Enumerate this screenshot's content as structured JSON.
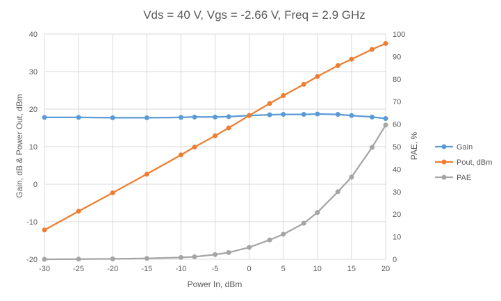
{
  "chart_data": {
    "type": "line",
    "title": "Vds = 40 V, Vgs = -2.66 V, Freq = 2.9 GHz",
    "xlabel": "Power In, dBm",
    "ylabel": "Gain, dB & Power Out, dBm",
    "y2label": "PAE, %",
    "xlim": [
      -30,
      20
    ],
    "ylim": [
      -20,
      40
    ],
    "y2lim": [
      0,
      100
    ],
    "xticks": [
      -30,
      -25,
      -20,
      -15,
      -10,
      -5,
      0,
      5,
      10,
      15,
      20
    ],
    "yticks": [
      -20,
      -10,
      0,
      10,
      20,
      30,
      40
    ],
    "y2ticks": [
      0,
      10,
      20,
      30,
      40,
      50,
      60,
      70,
      80,
      90,
      100
    ],
    "grid": true,
    "legend_position": "right",
    "series": [
      {
        "name": "Gain",
        "axis": "left",
        "color": "#5B9BD5",
        "x": [
          -30,
          -25,
          -20,
          -15,
          -10,
          -8,
          -5,
          -3,
          0,
          3,
          5,
          8,
          10,
          13,
          15,
          18,
          20
        ],
        "y": [
          17.8,
          17.8,
          17.7,
          17.7,
          17.8,
          17.9,
          17.9,
          18.0,
          18.3,
          18.5,
          18.6,
          18.6,
          18.7,
          18.6,
          18.3,
          17.9,
          17.5
        ]
      },
      {
        "name": "Pout, dBm",
        "axis": "left",
        "color": "#ED7D31",
        "x": [
          -30,
          -25,
          -20,
          -15,
          -10,
          -8,
          -5,
          -3,
          0,
          3,
          5,
          8,
          10,
          13,
          15,
          18,
          20
        ],
        "y": [
          -12.2,
          -7.2,
          -2.3,
          2.7,
          7.8,
          9.9,
          12.9,
          15.0,
          18.3,
          21.5,
          23.6,
          26.6,
          28.7,
          31.6,
          33.3,
          35.9,
          37.5
        ]
      },
      {
        "name": "PAE",
        "axis": "right",
        "color": "#A5A5A5",
        "x": [
          -30,
          -25,
          -20,
          -15,
          -10,
          -8,
          -5,
          -3,
          0,
          3,
          5,
          8,
          10,
          13,
          15,
          18,
          20
        ],
        "y": [
          0.0,
          0.1,
          0.2,
          0.4,
          0.8,
          1.1,
          2.1,
          3.0,
          5.3,
          8.6,
          11.1,
          16.0,
          20.8,
          30.0,
          36.5,
          49.7,
          59.6
        ]
      }
    ]
  }
}
